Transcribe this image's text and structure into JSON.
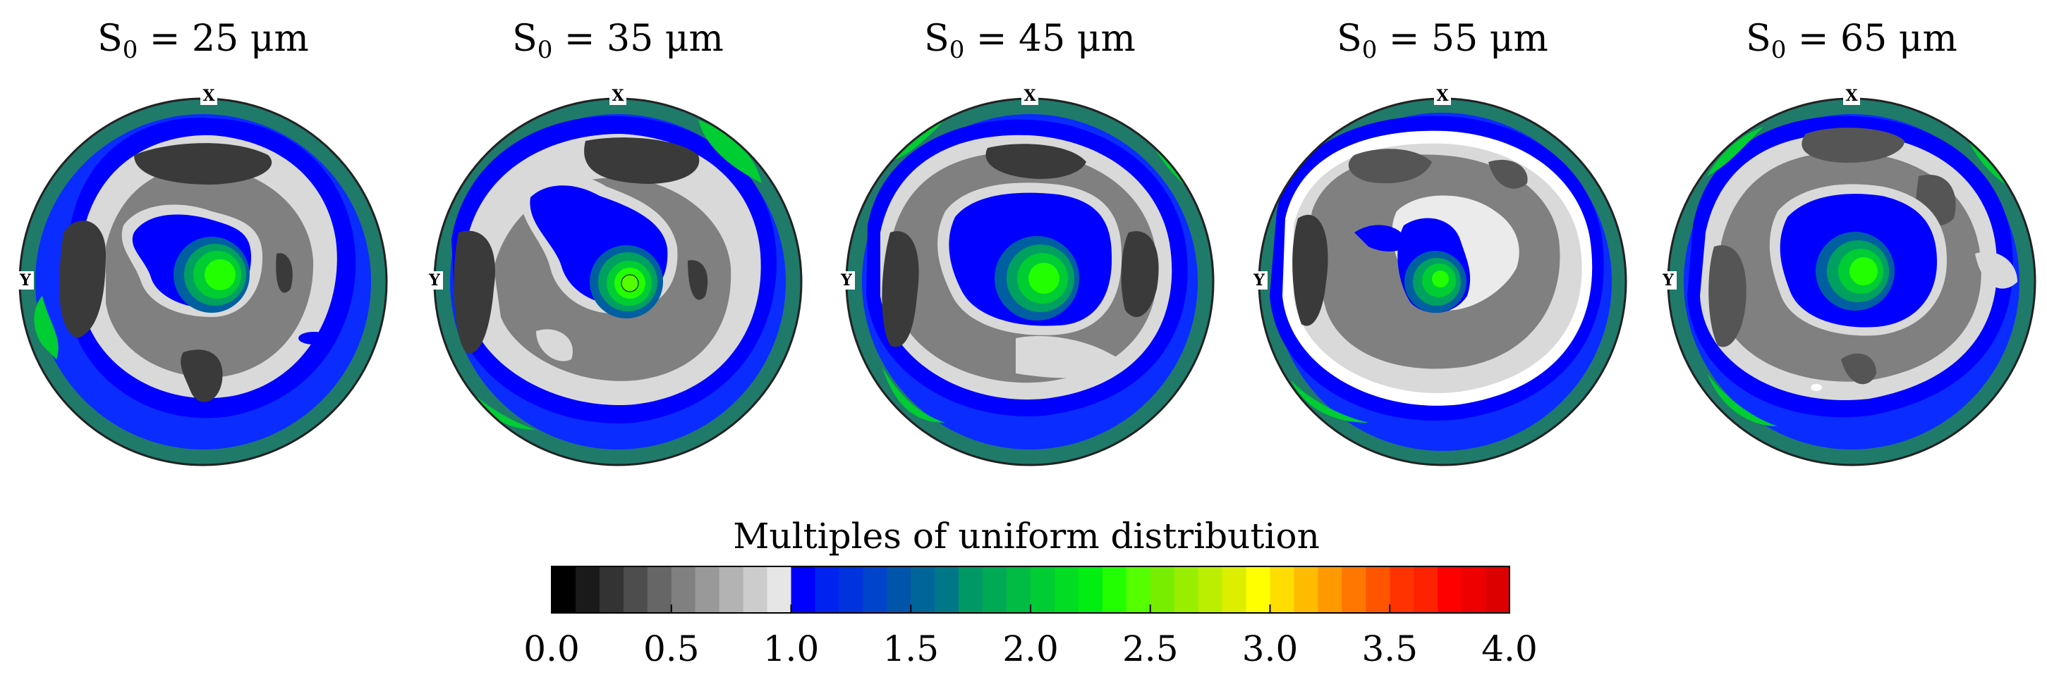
{
  "figure": {
    "panels": [
      {
        "s_label": "S",
        "s_sub": "0",
        "eq": " = 25 μm",
        "x_axis": "X",
        "y_axis": "Y"
      },
      {
        "s_label": "S",
        "s_sub": "0",
        "eq": " = 35 μm",
        "x_axis": "X",
        "y_axis": "Y"
      },
      {
        "s_label": "S",
        "s_sub": "0",
        "eq": " = 45 μm",
        "x_axis": "X",
        "y_axis": "Y"
      },
      {
        "s_label": "S",
        "s_sub": "0",
        "eq": " = 55 μm",
        "x_axis": "X",
        "y_axis": "Y"
      },
      {
        "s_label": "S",
        "s_sub": "0",
        "eq": " = 65 μm",
        "x_axis": "X",
        "y_axis": "Y"
      }
    ]
  },
  "colorbar": {
    "title": "Multiples of uniform distribution",
    "ticks": [
      "0.0",
      "0.5",
      "1.0",
      "1.5",
      "2.0",
      "2.5",
      "3.0",
      "3.5",
      "4.0"
    ],
    "range": [
      0.0,
      4.0
    ],
    "colors": [
      "#000000",
      "#1a1a1a",
      "#333333",
      "#4d4d4d",
      "#666666",
      "#808080",
      "#999999",
      "#b3b3b3",
      "#cccccc",
      "#e6e6e6",
      "#0000ff",
      "#0022ee",
      "#0033dd",
      "#0044cc",
      "#0055aa",
      "#006699",
      "#007788",
      "#009966",
      "#00aa55",
      "#00bb44",
      "#00cc33",
      "#00dd22",
      "#00ee11",
      "#22ff00",
      "#55ff00",
      "#77ee00",
      "#99ee00",
      "#bbee00",
      "#ddee00",
      "#ffff00",
      "#ffdd00",
      "#ffbb00",
      "#ff9900",
      "#ff7700",
      "#ff5500",
      "#ff3300",
      "#ff2200",
      "#ff0000",
      "#ee0000",
      "#dd0000"
    ]
  }
}
